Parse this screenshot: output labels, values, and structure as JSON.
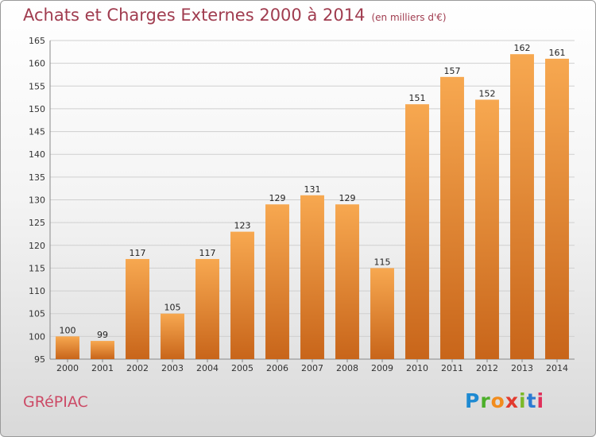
{
  "title": "Achats et Charges Externes 2000 à 2014",
  "subtitle": "(en milliers d'€)",
  "commune": "GRéPIAC",
  "logo": {
    "text": "Proxiti",
    "letter_colors": [
      "#1e8ad2",
      "#4caf2a",
      "#f28c1d",
      "#e23a2e",
      "#7bb928",
      "#2a7ad2",
      "#e02f5a"
    ]
  },
  "colors": {
    "title": "#a03c4f",
    "bar_top": "#f7a850",
    "bar_bottom": "#c8651a",
    "grid": "#cfcfcf"
  },
  "chart_data": {
    "type": "bar",
    "categories": [
      "2000",
      "2001",
      "2002",
      "2003",
      "2004",
      "2005",
      "2006",
      "2007",
      "2008",
      "2009",
      "2010",
      "2011",
      "2012",
      "2013",
      "2014"
    ],
    "values": [
      100,
      99,
      117,
      105,
      117,
      123,
      129,
      131,
      129,
      115,
      151,
      157,
      152,
      162,
      161
    ],
    "ylim": [
      95,
      165
    ],
    "yticks": [
      95,
      100,
      105,
      110,
      115,
      120,
      125,
      130,
      135,
      140,
      145,
      150,
      155,
      160,
      165
    ],
    "grid": true,
    "data_labels": true
  }
}
